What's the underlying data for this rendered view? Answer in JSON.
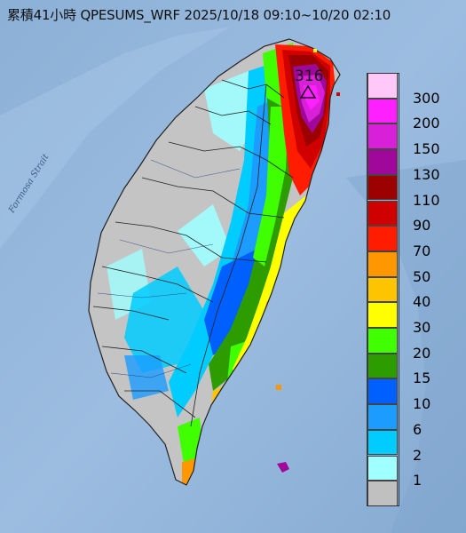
{
  "title": "累積41小時 QPESUMS_WRF 2025/10/18 09:10~10/20 02:10",
  "strait_label": "Formosa Strait",
  "peak_value": "316",
  "legend": [
    {
      "label": "300",
      "color": "#ffc8f8"
    },
    {
      "label": "200",
      "color": "#ff20ff"
    },
    {
      "label": "150",
      "color": "#d820d8"
    },
    {
      "label": "130",
      "color": "#a0089c"
    },
    {
      "label": "110",
      "color": "#9c0000"
    },
    {
      "label": "90",
      "color": "#d00000"
    },
    {
      "label": "70",
      "color": "#ff1c00"
    },
    {
      "label": "50",
      "color": "#ff9800"
    },
    {
      "label": "40",
      "color": "#ffc400"
    },
    {
      "label": "30",
      "color": "#ffff00"
    },
    {
      "label": "20",
      "color": "#40ff00"
    },
    {
      "label": "15",
      "color": "#2c9c00"
    },
    {
      "label": "10",
      "color": "#0060ff"
    },
    {
      "label": "6",
      "color": "#1c9cff"
    },
    {
      "label": "2",
      "color": "#00ccff"
    },
    {
      "label": "1",
      "color": "#a0ffff"
    },
    {
      "label": "",
      "color": "#c0c0c0"
    }
  ]
}
